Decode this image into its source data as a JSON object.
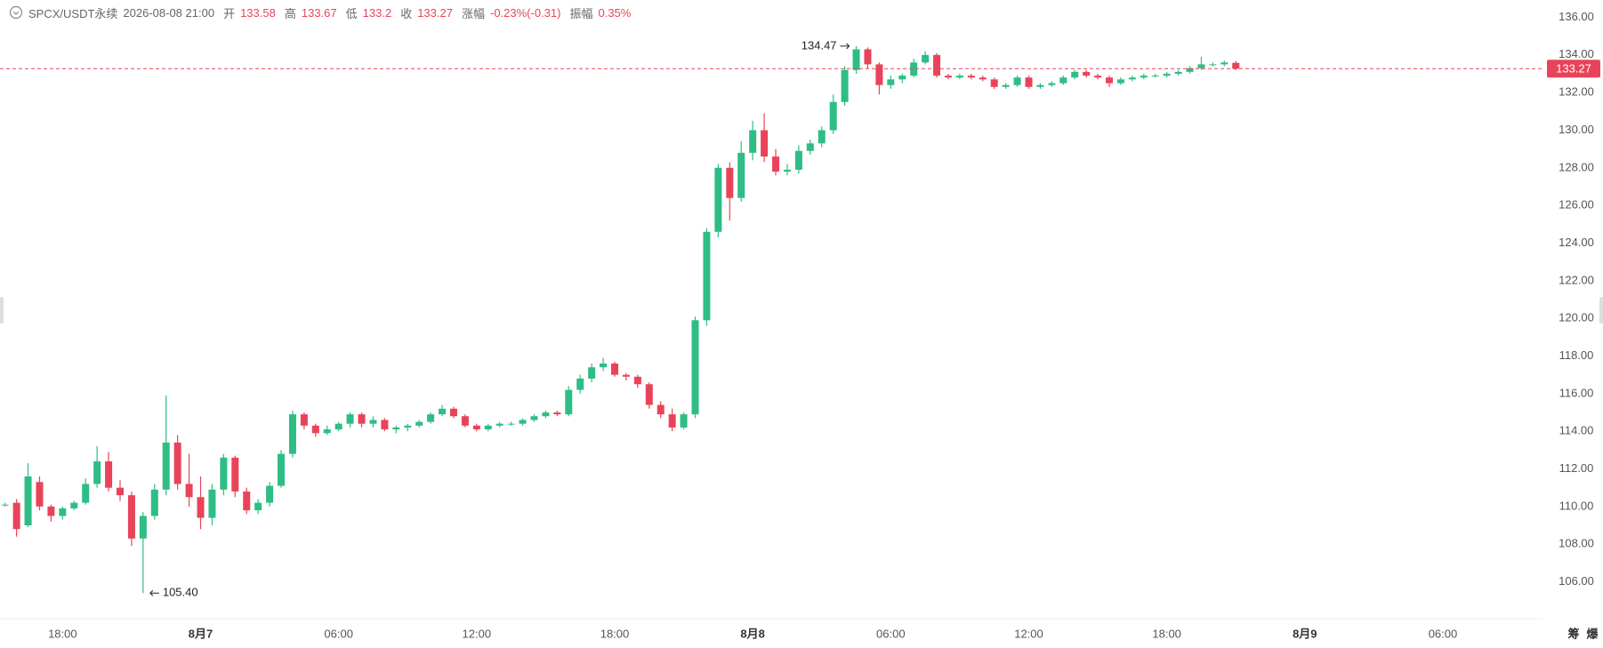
{
  "chart_data": {
    "type": "candlestick",
    "header": {
      "symbol": "SPCX/USDT永续",
      "time": "2026-08-08 21:00",
      "labels": [
        "开",
        "高",
        "低",
        "收",
        "涨幅",
        "振幅"
      ],
      "change": "-0.23%(-0.31)",
      "amplitude": "0.35%"
    },
    "up_color": "#2ebd85",
    "down_color": "#e9435a",
    "xlim": [
      -0.44,
      133.74
    ],
    "xticks": [
      {
        "value": 5,
        "label": "18:00"
      },
      {
        "value": 17,
        "label": "8月7"
      },
      {
        "value": 29,
        "label": "06:00"
      },
      {
        "value": 41,
        "label": "12:00"
      },
      {
        "value": 53,
        "label": "18:00"
      },
      {
        "value": 65,
        "label": "8月8"
      },
      {
        "value": 77,
        "label": "06:00"
      },
      {
        "value": 89,
        "label": "12:00"
      },
      {
        "value": 101,
        "label": "18:00"
      },
      {
        "value": 113,
        "label": "8月9"
      },
      {
        "value": 125,
        "label": "06:00"
      }
    ],
    "ylim": [
      104.04,
      136.92
    ],
    "yticks": [
      {
        "value": 106,
        "label": "106.00"
      },
      {
        "value": 108,
        "label": "108.00"
      },
      {
        "value": 110,
        "label": "110.00"
      },
      {
        "value": 112,
        "label": "112.00"
      },
      {
        "value": 114,
        "label": "114.00"
      },
      {
        "value": 116,
        "label": "116.00"
      },
      {
        "value": 118,
        "label": "118.00"
      },
      {
        "value": 120,
        "label": "120.00"
      },
      {
        "value": 122,
        "label": "122.00"
      },
      {
        "value": 124,
        "label": "124.00"
      },
      {
        "value": 126,
        "label": "126.00"
      },
      {
        "value": 128,
        "label": "128.00"
      },
      {
        "value": 130,
        "label": "130.00"
      },
      {
        "value": 132,
        "label": "132.00"
      },
      {
        "value": 134,
        "label": "134.00"
      },
      {
        "value": 136,
        "label": "136.00"
      }
    ],
    "annotations": [
      {
        "label": "134.47",
        "value": 134.47,
        "x": 74,
        "side": "left"
      },
      {
        "label": "105.40",
        "value": 105.4,
        "x": 12,
        "side": "right"
      }
    ],
    "footer_icons": [
      "筹",
      "爆"
    ],
    "candles": [
      [
        110.1,
        110.2,
        110.0,
        110.1
      ],
      [
        110.2,
        110.4,
        108.4,
        108.8
      ],
      [
        109.0,
        112.3,
        108.9,
        111.6
      ],
      [
        111.3,
        111.6,
        109.8,
        110.0
      ],
      [
        110.0,
        110.1,
        109.2,
        109.5
      ],
      [
        109.5,
        110.0,
        109.3,
        109.9
      ],
      [
        109.9,
        110.3,
        109.8,
        110.2
      ],
      [
        110.2,
        111.5,
        110.1,
        111.2
      ],
      [
        111.2,
        113.2,
        111.0,
        112.4
      ],
      [
        112.4,
        112.9,
        110.8,
        111.0
      ],
      [
        111.0,
        111.4,
        110.3,
        110.6
      ],
      [
        110.6,
        110.8,
        107.9,
        108.3
      ],
      [
        108.3,
        109.7,
        105.4,
        109.5
      ],
      [
        109.5,
        111.2,
        109.3,
        110.9
      ],
      [
        110.9,
        115.9,
        110.6,
        113.4
      ],
      [
        113.4,
        113.8,
        110.9,
        111.2
      ],
      [
        111.2,
        112.8,
        110.0,
        110.5
      ],
      [
        110.5,
        111.6,
        108.8,
        109.4
      ],
      [
        109.4,
        111.2,
        109.0,
        110.9
      ],
      [
        110.9,
        112.8,
        110.6,
        112.6
      ],
      [
        112.6,
        112.7,
        110.5,
        110.8
      ],
      [
        110.8,
        111.0,
        109.6,
        109.8
      ],
      [
        109.8,
        110.4,
        109.6,
        110.2
      ],
      [
        110.2,
        111.3,
        110.0,
        111.1
      ],
      [
        111.1,
        113.0,
        111.0,
        112.8
      ],
      [
        112.8,
        115.1,
        112.6,
        114.9
      ],
      [
        114.9,
        115.0,
        114.1,
        114.3
      ],
      [
        114.3,
        114.4,
        113.7,
        113.9
      ],
      [
        113.9,
        114.3,
        113.8,
        114.1
      ],
      [
        114.1,
        114.5,
        114.0,
        114.4
      ],
      [
        114.4,
        115.0,
        114.2,
        114.9
      ],
      [
        114.9,
        115.0,
        114.2,
        114.4
      ],
      [
        114.4,
        114.8,
        114.2,
        114.6
      ],
      [
        114.6,
        114.7,
        114.0,
        114.1
      ],
      [
        114.1,
        114.3,
        113.9,
        114.2
      ],
      [
        114.2,
        114.4,
        114.0,
        114.3
      ],
      [
        114.3,
        114.6,
        114.2,
        114.5
      ],
      [
        114.5,
        115.0,
        114.4,
        114.9
      ],
      [
        114.9,
        115.4,
        114.8,
        115.2
      ],
      [
        115.2,
        115.3,
        114.7,
        114.8
      ],
      [
        114.8,
        114.9,
        114.2,
        114.3
      ],
      [
        114.3,
        114.4,
        114.0,
        114.1
      ],
      [
        114.1,
        114.4,
        114.0,
        114.3
      ],
      [
        114.3,
        114.5,
        114.2,
        114.4
      ],
      [
        114.4,
        114.5,
        114.3,
        114.4
      ],
      [
        114.4,
        114.7,
        114.3,
        114.6
      ],
      [
        114.6,
        114.9,
        114.5,
        114.8
      ],
      [
        114.8,
        115.1,
        114.7,
        115.0
      ],
      [
        115.0,
        115.1,
        114.8,
        114.9
      ],
      [
        114.9,
        116.4,
        114.8,
        116.2
      ],
      [
        116.2,
        117.0,
        116.0,
        116.8
      ],
      [
        116.8,
        117.6,
        116.6,
        117.4
      ],
      [
        117.4,
        117.9,
        117.2,
        117.6
      ],
      [
        117.6,
        117.7,
        116.9,
        117.0
      ],
      [
        117.0,
        117.1,
        116.7,
        116.9
      ],
      [
        116.9,
        117.0,
        116.3,
        116.5
      ],
      [
        116.5,
        116.6,
        115.2,
        115.4
      ],
      [
        115.4,
        115.6,
        114.7,
        114.9
      ],
      [
        114.9,
        115.2,
        114.0,
        114.2
      ],
      [
        114.2,
        115.0,
        114.1,
        114.9
      ],
      [
        114.9,
        120.1,
        114.7,
        119.9
      ],
      [
        119.9,
        124.8,
        119.6,
        124.6
      ],
      [
        124.6,
        128.2,
        124.3,
        128.0
      ],
      [
        128.0,
        128.3,
        125.2,
        126.4
      ],
      [
        126.4,
        129.4,
        126.2,
        128.8
      ],
      [
        128.8,
        130.5,
        128.4,
        130.0
      ],
      [
        130.0,
        130.9,
        128.3,
        128.6
      ],
      [
        128.6,
        129.0,
        127.6,
        127.8
      ],
      [
        127.8,
        128.2,
        127.6,
        127.9
      ],
      [
        127.9,
        129.2,
        127.7,
        128.9
      ],
      [
        128.9,
        129.5,
        128.7,
        129.3
      ],
      [
        129.3,
        130.2,
        129.1,
        130.0
      ],
      [
        130.0,
        131.9,
        129.8,
        131.5
      ],
      [
        131.5,
        133.4,
        131.3,
        133.2
      ],
      [
        133.2,
        134.47,
        133.0,
        134.3
      ],
      [
        134.3,
        134.4,
        133.3,
        133.5
      ],
      [
        133.5,
        133.6,
        131.9,
        132.4
      ],
      [
        132.4,
        132.9,
        132.2,
        132.7
      ],
      [
        132.7,
        133.0,
        132.5,
        132.9
      ],
      [
        132.9,
        133.8,
        132.8,
        133.6
      ],
      [
        133.6,
        134.2,
        133.5,
        134.0
      ],
      [
        134.0,
        134.1,
        132.8,
        132.9
      ],
      [
        132.9,
        133.0,
        132.7,
        132.8
      ],
      [
        132.8,
        133.0,
        132.7,
        132.9
      ],
      [
        132.9,
        133.0,
        132.7,
        132.8
      ],
      [
        132.8,
        132.9,
        132.6,
        132.7
      ],
      [
        132.7,
        132.8,
        132.2,
        132.3
      ],
      [
        132.3,
        132.5,
        132.2,
        132.4
      ],
      [
        132.4,
        132.9,
        132.3,
        132.8
      ],
      [
        132.8,
        132.9,
        132.2,
        132.3
      ],
      [
        132.3,
        132.5,
        132.2,
        132.4
      ],
      [
        132.4,
        132.6,
        132.3,
        132.5
      ],
      [
        132.5,
        132.9,
        132.4,
        132.8
      ],
      [
        132.8,
        133.2,
        132.7,
        133.1
      ],
      [
        133.1,
        133.2,
        132.8,
        132.9
      ],
      [
        132.9,
        133.0,
        132.7,
        132.8
      ],
      [
        132.8,
        132.9,
        132.3,
        132.5
      ],
      [
        132.5,
        132.8,
        132.4,
        132.7
      ],
      [
        132.7,
        132.9,
        132.6,
        132.8
      ],
      [
        132.8,
        133.0,
        132.7,
        132.9
      ],
      [
        132.9,
        133.0,
        132.8,
        132.9
      ],
      [
        132.9,
        133.1,
        132.8,
        133.0
      ],
      [
        133.0,
        133.2,
        132.9,
        133.1
      ],
      [
        133.1,
        133.4,
        133.0,
        133.3
      ],
      [
        133.3,
        133.9,
        133.2,
        133.5
      ],
      [
        133.5,
        133.6,
        133.4,
        133.5
      ],
      [
        133.5,
        133.7,
        133.4,
        133.6
      ],
      [
        133.58,
        133.67,
        133.2,
        133.27
      ]
    ]
  }
}
